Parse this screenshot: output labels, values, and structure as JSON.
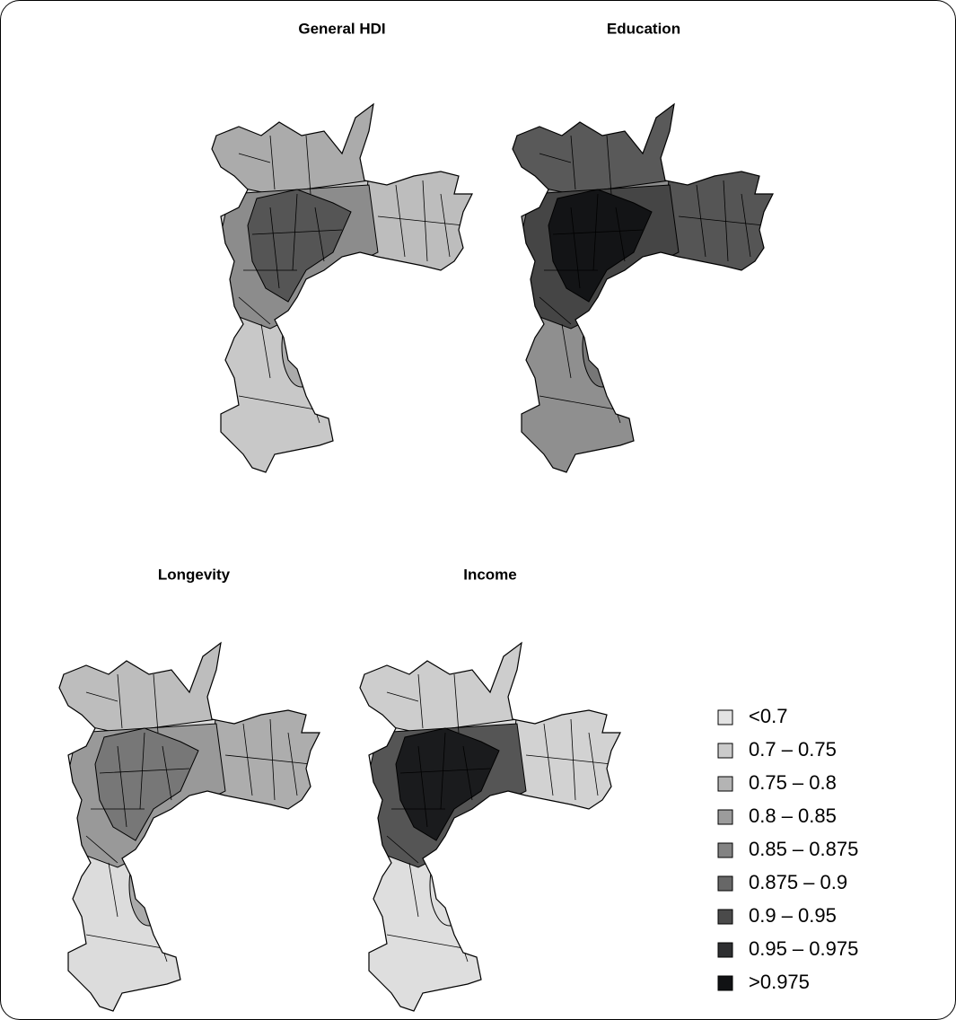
{
  "panels": [
    {
      "title": "General HDI"
    },
    {
      "title": "Education"
    },
    {
      "title": "Longevity"
    },
    {
      "title": "Income"
    }
  ],
  "legend": {
    "items": [
      {
        "label": "<0.7",
        "color": "#e3e3e3"
      },
      {
        "label": "0.7 – 0.75",
        "color": "#cbcbcb"
      },
      {
        "label": "0.75 – 0.8",
        "color": "#b4b4b4"
      },
      {
        "label": "0.8 – 0.85",
        "color": "#9c9c9c"
      },
      {
        "label": "0.85 – 0.875",
        "color": "#838383"
      },
      {
        "label": "0.875 – 0.9",
        "color": "#676767"
      },
      {
        "label": "0.9 – 0.95",
        "color": "#4a4a4a"
      },
      {
        "label": "0.95 – 0.975",
        "color": "#2e2f31"
      },
      {
        "label": ">0.975",
        "color": "#111214"
      }
    ]
  }
}
